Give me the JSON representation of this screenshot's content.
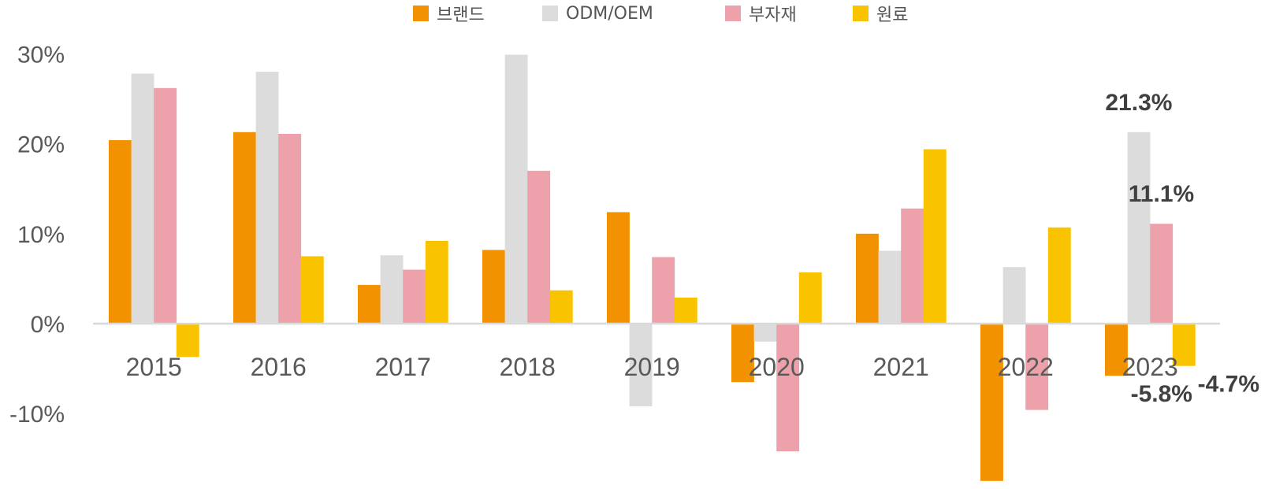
{
  "chart_data": {
    "type": "bar",
    "categories": [
      "2015",
      "2016",
      "2017",
      "2018",
      "2019",
      "2020",
      "2021",
      "2022",
      "2023"
    ],
    "series": [
      {
        "name": "브랜드",
        "color": "#F39200",
        "values": [
          20.4,
          21.3,
          4.3,
          8.2,
          12.4,
          -6.5,
          10.0,
          -17.5,
          -5.8
        ]
      },
      {
        "name": "ODM/OEM",
        "color": "#DCDCDC",
        "values": [
          27.8,
          28.0,
          7.6,
          29.9,
          -9.2,
          -2.0,
          8.1,
          6.3,
          21.3
        ]
      },
      {
        "name": "부자재",
        "color": "#EDA1AA",
        "values": [
          26.2,
          21.1,
          6.0,
          17.0,
          7.4,
          -14.2,
          12.8,
          -9.6,
          11.1
        ]
      },
      {
        "name": "원료",
        "color": "#FAC300",
        "values": [
          -3.7,
          7.5,
          9.2,
          3.7,
          2.9,
          5.7,
          19.4,
          10.7,
          -4.7
        ]
      }
    ],
    "ylim": [
      -17.5,
      32
    ],
    "yticks": [
      30,
      20,
      10,
      0,
      -10
    ],
    "ytick_labels": [
      "30%",
      "20%",
      "10%",
      "0%",
      "-10%"
    ],
    "data_labels": [
      {
        "text": "21.3%",
        "category": "2023",
        "series": "ODM/OEM"
      },
      {
        "text": "11.1%",
        "category": "2023",
        "series": "부자재"
      },
      {
        "text": "-5.8%",
        "category": "2023",
        "series": "브랜드"
      },
      {
        "text": "-4.7%",
        "category": "2023",
        "series": "원료"
      }
    ],
    "grid": false,
    "legend_position": "top-center",
    "title": "",
    "xlabel": "",
    "ylabel": ""
  }
}
